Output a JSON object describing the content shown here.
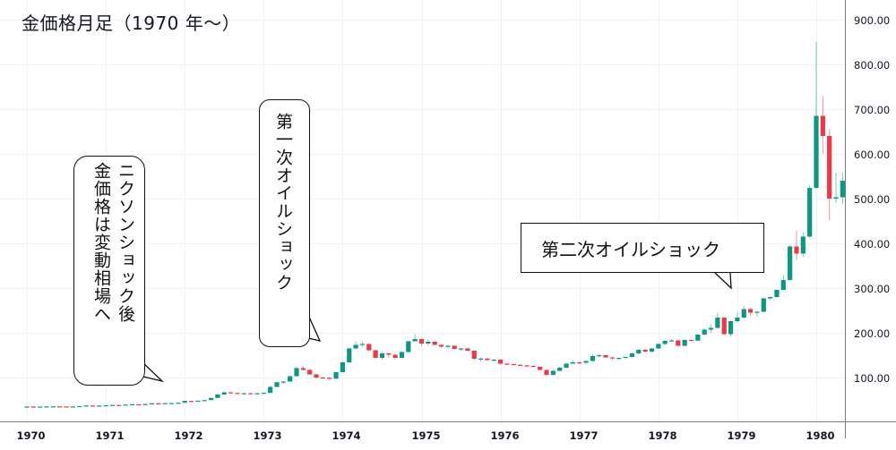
{
  "title": "金価格月足（1970 年〜）",
  "colors": {
    "up": "#089981",
    "down": "#f23645",
    "grid": "#eef3f7",
    "axis": "#787b86",
    "text": "#131722"
  },
  "annotations": [
    {
      "id": "nixon",
      "lines": [
        "ニクソンショック後",
        "金価格は変動相場へ"
      ]
    },
    {
      "id": "oil1",
      "lines": [
        "第一次オイルショック"
      ]
    },
    {
      "id": "oil2",
      "lines": [
        "第二次オイルショック"
      ]
    }
  ],
  "chart_data": {
    "type": "candlestick",
    "title": "金価格月足（1970 年〜）",
    "xlabel": "",
    "ylabel": "",
    "ylim": [
      0,
      900
    ],
    "grid": true,
    "y_ticks": [
      "100.00",
      "200.00",
      "300.00",
      "400.00",
      "500.00",
      "600.00",
      "700.00",
      "800.00",
      "900.00"
    ],
    "x_ticks": [
      "1970",
      "1971",
      "1972",
      "1973",
      "1974",
      "1975",
      "1976",
      "1977",
      "1978",
      "1979",
      "1980"
    ],
    "start": "1970-01",
    "interval": "1M",
    "ohlc": [
      [
        35.0,
        35.4,
        34.9,
        35.2
      ],
      [
        35.2,
        35.3,
        34.9,
        35.0
      ],
      [
        35.0,
        35.2,
        34.9,
        35.1
      ],
      [
        35.1,
        35.5,
        35.0,
        35.4
      ],
      [
        35.4,
        35.6,
        35.2,
        35.5
      ],
      [
        35.5,
        35.6,
        35.3,
        35.4
      ],
      [
        35.4,
        35.6,
        35.3,
        35.3
      ],
      [
        35.3,
        35.5,
        35.1,
        35.4
      ],
      [
        35.4,
        36.6,
        35.3,
        36.2
      ],
      [
        36.2,
        37.7,
        36.0,
        37.5
      ],
      [
        37.5,
        37.7,
        37.1,
        37.4
      ],
      [
        37.4,
        37.6,
        37.3,
        37.4
      ],
      [
        37.4,
        38.2,
        37.3,
        38.0
      ],
      [
        38.0,
        38.9,
        37.8,
        38.7
      ],
      [
        38.7,
        38.9,
        38.1,
        38.3
      ],
      [
        38.3,
        39.7,
        38.2,
        39.5
      ],
      [
        39.5,
        40.8,
        39.1,
        40.3
      ],
      [
        40.3,
        40.7,
        39.6,
        40.0
      ],
      [
        40.0,
        41.4,
        39.9,
        41.0
      ],
      [
        41.0,
        42.9,
        40.8,
        42.4
      ],
      [
        42.4,
        42.6,
        41.6,
        42.0
      ],
      [
        42.0,
        42.9,
        41.9,
        42.7
      ],
      [
        42.7,
        43.0,
        42.4,
        43.0
      ],
      [
        43.0,
        43.8,
        42.9,
        43.6
      ],
      [
        43.6,
        48.3,
        43.5,
        47.8
      ],
      [
        47.8,
        48.2,
        47.0,
        47.4
      ],
      [
        47.4,
        48.5,
        47.0,
        48.3
      ],
      [
        48.3,
        49.7,
        48.2,
        49.5
      ],
      [
        49.5,
        54.6,
        49.4,
        54.4
      ],
      [
        54.4,
        62.5,
        54.0,
        62.0
      ],
      [
        62.0,
        67.6,
        61.8,
        66.9
      ],
      [
        66.9,
        69.3,
        65.5,
        65.5
      ],
      [
        65.5,
        66.2,
        63.3,
        64.4
      ],
      [
        64.4,
        65.8,
        63.9,
        64.9
      ],
      [
        64.9,
        65.5,
        62.8,
        63.6
      ],
      [
        63.6,
        65.3,
        63.4,
        64.9
      ],
      [
        64.9,
        66.0,
        64.3,
        65.8
      ],
      [
        65.8,
        82.0,
        65.4,
        79.0
      ],
      [
        79.0,
        90.3,
        78.8,
        89.5
      ],
      [
        89.5,
        92.0,
        85.7,
        91.0
      ],
      [
        91.0,
        104.2,
        90.8,
        103.0
      ],
      [
        103.0,
        125.0,
        102.5,
        121.0
      ],
      [
        121.0,
        125.0,
        115.0,
        117.0
      ],
      [
        117.0,
        119.0,
        106.0,
        107.0
      ],
      [
        107.0,
        108.0,
        98.0,
        100.0
      ],
      [
        100.0,
        101.5,
        97.0,
        99.5
      ],
      [
        99.5,
        101.0,
        94.0,
        97.5
      ],
      [
        97.5,
        112.5,
        96.5,
        112.0
      ],
      [
        112.0,
        135.5,
        111.5,
        134.0
      ],
      [
        134.0,
        166.0,
        133.0,
        165.0
      ],
      [
        165.0,
        181.0,
        163.0,
        173.0
      ],
      [
        173.0,
        180.5,
        168.0,
        175.0
      ],
      [
        175.0,
        176.0,
        160.0,
        161.0
      ],
      [
        161.0,
        162.0,
        141.5,
        144.0
      ],
      [
        144.0,
        157.0,
        140.0,
        154.0
      ],
      [
        154.0,
        156.0,
        145.0,
        151.0
      ],
      [
        151.0,
        152.0,
        140.0,
        144.0
      ],
      [
        144.0,
        158.5,
        143.0,
        157.0
      ],
      [
        157.0,
        183.0,
        156.0,
        181.0
      ],
      [
        181.0,
        197.0,
        181.0,
        186.0
      ],
      [
        186.0,
        187.0,
        170.0,
        176.0
      ],
      [
        176.0,
        185.0,
        171.0,
        180.0
      ],
      [
        180.0,
        181.0,
        172.0,
        173.0
      ],
      [
        173.0,
        175.0,
        166.0,
        169.0
      ],
      [
        169.0,
        173.0,
        165.0,
        171.0
      ],
      [
        171.0,
        173.0,
        163.0,
        164.0
      ],
      [
        164.0,
        166.0,
        160.0,
        165.0
      ],
      [
        165.0,
        166.0,
        158.0,
        160.0
      ],
      [
        160.0,
        161.0,
        140.0,
        142.0
      ],
      [
        142.0,
        145.0,
        136.0,
        142.5
      ],
      [
        142.5,
        143.5,
        138.0,
        139.0
      ],
      [
        139.0,
        141.0,
        136.0,
        140.0
      ],
      [
        140.0,
        141.0,
        127.5,
        131.0
      ],
      [
        131.0,
        132.0,
        127.0,
        130.0
      ],
      [
        130.0,
        131.0,
        128.0,
        128.5
      ],
      [
        128.5,
        130.0,
        126.0,
        127.0
      ],
      [
        127.0,
        128.0,
        125.0,
        126.0
      ],
      [
        126.0,
        127.0,
        123.0,
        124.0
      ],
      [
        124.0,
        125.0,
        116.0,
        117.0
      ],
      [
        117.0,
        118.0,
        103.0,
        106.0
      ],
      [
        106.0,
        118.0,
        104.0,
        115.0
      ],
      [
        115.0,
        124.0,
        114.0,
        122.0
      ],
      [
        122.0,
        133.0,
        121.0,
        131.0
      ],
      [
        131.0,
        139.0,
        130.0,
        134.0
      ],
      [
        134.0,
        137.0,
        130.0,
        133.0
      ],
      [
        133.0,
        138.0,
        131.0,
        137.0
      ],
      [
        137.0,
        152.0,
        136.0,
        148.0
      ],
      [
        148.0,
        153.0,
        146.0,
        150.0
      ],
      [
        150.0,
        152.0,
        143.0,
        145.0
      ],
      [
        145.0,
        146.0,
        138.0,
        143.0
      ],
      [
        143.0,
        144.0,
        139.0,
        144.0
      ],
      [
        144.0,
        147.0,
        143.0,
        146.0
      ],
      [
        146.0,
        156.0,
        145.0,
        154.0
      ],
      [
        154.0,
        163.0,
        152.0,
        162.0
      ],
      [
        162.0,
        164.0,
        156.0,
        158.0
      ],
      [
        158.0,
        166.0,
        156.0,
        165.0
      ],
      [
        165.0,
        177.0,
        164.0,
        175.0
      ],
      [
        175.0,
        184.0,
        173.0,
        182.0
      ],
      [
        182.0,
        186.0,
        180.0,
        183.0
      ],
      [
        183.0,
        184.0,
        170.0,
        171.0
      ],
      [
        171.0,
        185.0,
        170.0,
        184.0
      ],
      [
        184.0,
        185.0,
        181.0,
        182.5
      ],
      [
        182.5,
        197.0,
        182.0,
        196.0
      ],
      [
        196.0,
        210.0,
        195.0,
        207.0
      ],
      [
        207.0,
        220.0,
        200.0,
        211.0
      ],
      [
        211.0,
        245.0,
        210.0,
        234.0
      ],
      [
        234.0,
        235.0,
        195.0,
        197.0
      ],
      [
        197.0,
        227.0,
        192.0,
        226.0
      ],
      [
        226.0,
        246.0,
        224.0,
        234.0
      ],
      [
        234.0,
        260.0,
        232.0,
        253.0
      ],
      [
        253.0,
        256.0,
        238.0,
        245.0
      ],
      [
        245.0,
        248.0,
        236.0,
        247.0
      ],
      [
        247.0,
        279.0,
        246.0,
        277.0
      ],
      [
        277.0,
        281.0,
        274.0,
        280.0
      ],
      [
        280.0,
        297.0,
        278.0,
        296.0
      ],
      [
        296.0,
        330.0,
        294.0,
        318.0
      ],
      [
        318.0,
        397.0,
        316.0,
        393.0
      ],
      [
        393.0,
        428.0,
        362.0,
        377.0
      ],
      [
        377.0,
        425.0,
        370.0,
        415.0
      ],
      [
        415.0,
        530.0,
        413.0,
        524.0
      ],
      [
        524.0,
        850.0,
        522.0,
        685.0
      ],
      [
        685.0,
        730.0,
        600.0,
        640.0
      ],
      [
        640.0,
        655.0,
        452.0,
        500.0
      ],
      [
        500.0,
        558.0,
        490.0,
        503.0
      ],
      [
        503.0,
        558.0,
        488.0,
        540.0
      ]
    ]
  }
}
